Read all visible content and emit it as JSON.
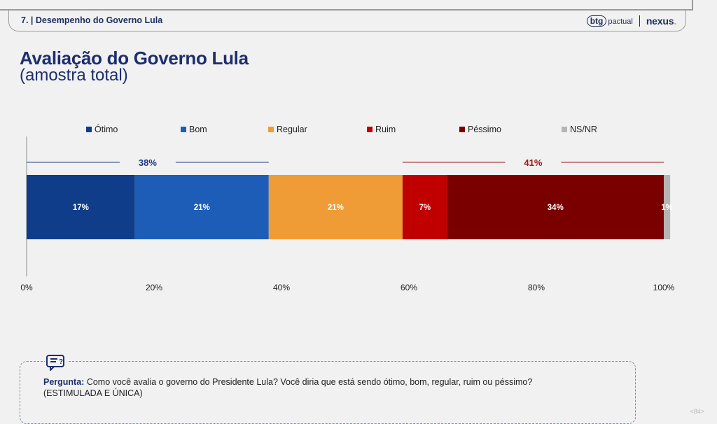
{
  "header": {
    "section": "7. | Desempenho do Governo Lula",
    "brand_btg": "btg",
    "brand_pactual": "pactual",
    "brand_nexus": "nexus",
    "brand_nexus_dot": "."
  },
  "title": "Avaliação do Governo Lula",
  "subtitle": "(amostra total)",
  "chart_data": {
    "type": "bar",
    "orientation": "horizontal-stacked",
    "categories": [
      "amostra total"
    ],
    "series": [
      {
        "name": "Ótimo",
        "values": [
          17
        ],
        "color": "#0f3d8a"
      },
      {
        "name": "Bom",
        "values": [
          21
        ],
        "color": "#1d5db8"
      },
      {
        "name": "Regular",
        "values": [
          21
        ],
        "color": "#f09c36"
      },
      {
        "name": "Ruim",
        "values": [
          7
        ],
        "color": "#c00000"
      },
      {
        "name": "Péssimo",
        "values": [
          34
        ],
        "color": "#7a0000"
      },
      {
        "name": "NS/NR",
        "values": [
          1
        ],
        "color": "#b5b5b5"
      }
    ],
    "data_labels": [
      "17%",
      "21%",
      "21%",
      "7%",
      "34%",
      "1%"
    ],
    "groups": [
      {
        "label": "38%",
        "from": 0,
        "to": 38,
        "color": "#1d3a8a"
      },
      {
        "label": "41%",
        "from": 59,
        "to": 100,
        "color": "#a01414"
      }
    ],
    "xlim": [
      0,
      100
    ],
    "xticks": [
      "0%",
      "20%",
      "40%",
      "60%",
      "80%",
      "100%"
    ],
    "legend_position": "top",
    "grid": false
  },
  "question": {
    "label": "Pergunta:",
    "text": " Como você avalia o governo do Presidente Lula? Você diria que está sendo ótimo, bom, regular, ruim ou péssimo?",
    "note": "(ESTIMULADA E ÚNICA)"
  },
  "page_number": "<84>",
  "icons": {
    "question": "chat-question-icon"
  }
}
